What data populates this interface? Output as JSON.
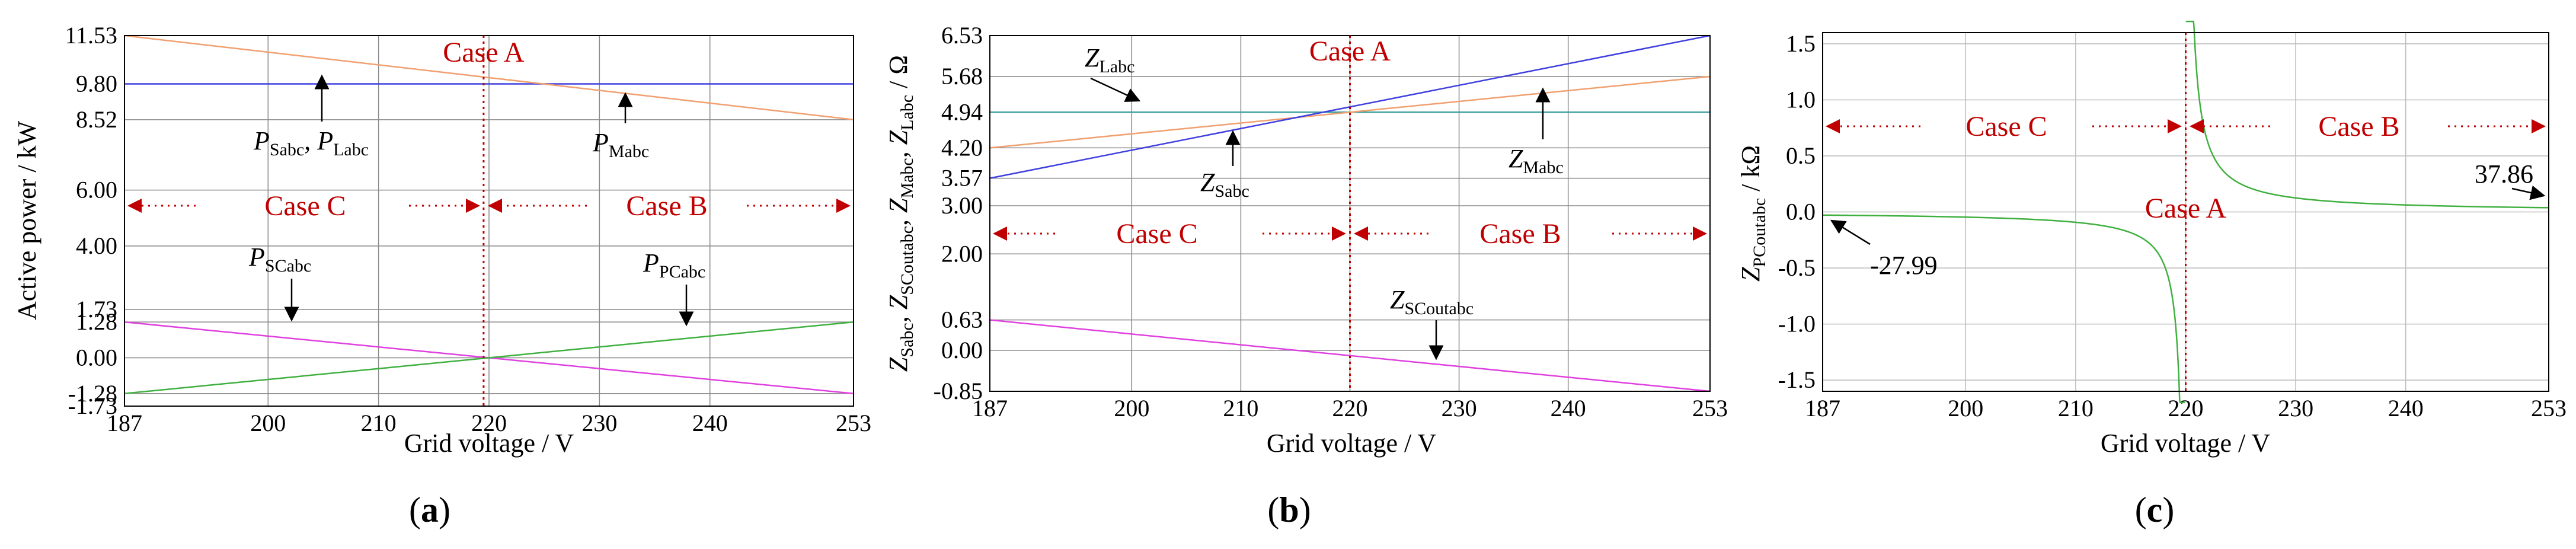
{
  "chart_data": [
    {
      "type": "line",
      "panel_label": "a",
      "xlabel": "Grid voltage / V",
      "ylabel": "Active power / kW",
      "xlim": [
        187,
        253
      ],
      "ylim": [
        -1.73,
        11.53
      ],
      "xticks": [
        "187",
        "200",
        "210",
        "220",
        "230",
        "240",
        "253"
      ],
      "yticks": [
        "11.53",
        "9.80",
        "8.52",
        "6.00",
        "4.00",
        "1.73",
        "1.28",
        "0.00",
        "-1.28",
        "-1.73"
      ],
      "series": [
        {
          "name": "P_Sabc, P_Labc",
          "color": "#4040e0",
          "x": [
            187,
            253
          ],
          "y": [
            9.8,
            9.8
          ]
        },
        {
          "name": "P_Mabc",
          "color": "#f0a070",
          "x": [
            187,
            253
          ],
          "y": [
            11.53,
            8.52
          ]
        },
        {
          "name": "P_SCabc",
          "color": "#e040e0",
          "x": [
            187,
            253
          ],
          "y": [
            1.28,
            -1.28
          ]
        },
        {
          "name": "P_PCabc",
          "color": "#40b040",
          "x": [
            187,
            253
          ],
          "y": [
            -1.28,
            1.28
          ]
        }
      ],
      "case_regions": {
        "case_a": "Case A",
        "case_b": "Case B",
        "case_c": "Case C"
      },
      "labels": {
        "ps": "P",
        "ps_sub": "Sabc",
        "sep": ", ",
        "pl": "P",
        "pl_sub": "Labc",
        "pm": "P",
        "pm_sub": "Mabc",
        "psc": "P",
        "psc_sub": "SCabc",
        "ppc": "P",
        "ppc_sub": "PCabc"
      }
    },
    {
      "type": "line",
      "panel_label": "b",
      "xlabel": "Grid voltage / V",
      "ylabel_parts": [
        "Z",
        "Sabc",
        ", Z",
        "SCoutabc",
        ", Z",
        "Mabc",
        ", Z",
        "Labc",
        " / Ω"
      ],
      "xlim": [
        187,
        253
      ],
      "ylim": [
        -0.85,
        6.53
      ],
      "xticks": [
        "187",
        "200",
        "210",
        "220",
        "230",
        "240",
        "253"
      ],
      "yticks": [
        "6.53",
        "5.68",
        "4.94",
        "4.20",
        "3.57",
        "3.00",
        "2.00",
        "0.63",
        "0.00",
        "-0.85"
      ],
      "series": [
        {
          "name": "Z_Labc",
          "color": "#40a0a0",
          "x": [
            187,
            253
          ],
          "y": [
            4.94,
            4.94
          ]
        },
        {
          "name": "Z_Mabc",
          "color": "#f0a070",
          "x": [
            187,
            253
          ],
          "y": [
            4.2,
            5.68
          ]
        },
        {
          "name": "Z_Sabc",
          "color": "#4040e0",
          "x": [
            187,
            253
          ],
          "y": [
            3.57,
            6.53
          ]
        },
        {
          "name": "Z_SCoutabc",
          "color": "#e040e0",
          "x": [
            187,
            253
          ],
          "y": [
            0.63,
            -0.85
          ]
        }
      ],
      "case_regions": {
        "case_a": "Case A",
        "case_b": "Case B",
        "case_c": "Case C"
      },
      "labels": {
        "zl": "Z",
        "zl_sub": "Labc",
        "zs": "Z",
        "zs_sub": "Sabc",
        "zm": "Z",
        "zm_sub": "Mabc",
        "zsc": "Z",
        "zsc_sub": "SCoutabc"
      }
    },
    {
      "type": "line",
      "panel_label": "c",
      "xlabel": "Grid voltage / V",
      "ylabel_parts": [
        "Z",
        "PCoutabc",
        " / kΩ"
      ],
      "xlim": [
        187,
        253
      ],
      "ylim": [
        -1.6,
        1.6
      ],
      "xticks": [
        "187",
        "200",
        "210",
        "220",
        "230",
        "240",
        "253"
      ],
      "yticks": [
        "1.5",
        "1.0",
        "0.5",
        "0.0",
        "-0.5",
        "-1.0",
        "-1.5"
      ],
      "series": [
        {
          "name": "Z_PCoutabc",
          "color": "#40b040",
          "asymptote_x": 220,
          "endpoint_left": -0.02799,
          "endpoint_right": 0.03786
        }
      ],
      "case_regions": {
        "case_a": "Case A",
        "case_b": "Case B",
        "case_c": "Case C"
      },
      "annotations": {
        "left_value": "-27.99",
        "right_value": "37.86"
      }
    }
  ]
}
